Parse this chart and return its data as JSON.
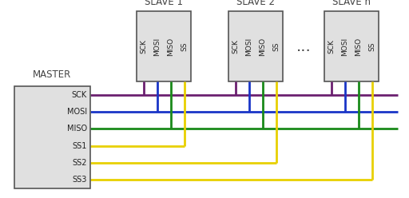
{
  "bg_color": "#ffffff",
  "master_label": "MASTER",
  "master_pins": [
    "SCK",
    "MOSI",
    "MISO",
    "SS1",
    "SS2",
    "SS3"
  ],
  "slave_labels": [
    "SLAVE 1",
    "SLAVE 2",
    "SLAVE n"
  ],
  "slave_pins": [
    "SCK",
    "MOSI",
    "MISO",
    "SS"
  ],
  "dots_label": "...",
  "color_SCK": "#6b2070",
  "color_MOSI": "#1a35c7",
  "color_MISO": "#1a8a1a",
  "color_SS": "#e8d000",
  "figsize": [
    5.12,
    2.48
  ],
  "dpi": 100
}
